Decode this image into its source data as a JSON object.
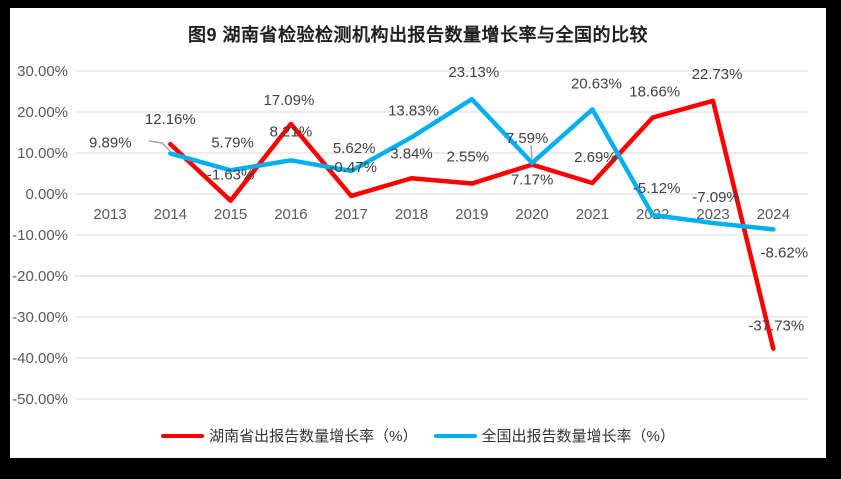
{
  "chart_data": {
    "type": "line",
    "title": "图9 湖南省检验检测机构出报告数量增长率与全国的比较",
    "categories": [
      "2013",
      "2014",
      "2015",
      "2016",
      "2017",
      "2018",
      "2019",
      "2020",
      "2021",
      "2022",
      "2023",
      "2024"
    ],
    "y_ticks": {
      "labels": [
        "30.00%",
        "20.00%",
        "10.00%",
        "0.00%",
        "-10.00%",
        "-20.00%",
        "-30.00%",
        "-40.00%",
        "-50.00%"
      ],
      "values": [
        30,
        20,
        10,
        0,
        -10,
        -20,
        -30,
        -40,
        -50
      ]
    },
    "ylim": [
      -50,
      30
    ],
    "grid": true,
    "legend_position": "bottom",
    "colors": {
      "grid": "#D9D9D9",
      "axis_text": "#595959",
      "data_label_text": "#404040",
      "leader": "#A6A6A6",
      "hunan_red": "#FF0000",
      "national_blue": "#00B0F0"
    },
    "series": [
      {
        "name": "湖南省出报告数量增长率（%）",
        "color": "#FF0000",
        "values": [
          null,
          12.16,
          -1.63,
          17.09,
          -0.47,
          3.84,
          2.55,
          7.17,
          2.69,
          18.66,
          22.73,
          -37.73
        ],
        "labels": [
          "",
          "12.16%",
          "-1.63%",
          "17.09%",
          "-0.47%",
          "3.84%",
          "2.55%",
          "7.17%",
          "2.69%",
          "18.66%",
          "22.73%",
          "-37.73%"
        ],
        "label_offsets": [
          [
            0,
            0
          ],
          [
            0,
            -25
          ],
          [
            0,
            -26
          ],
          [
            -2,
            -24
          ],
          [
            2,
            -29
          ],
          [
            0,
            -25
          ],
          [
            -4,
            -27
          ],
          [
            0,
            15
          ],
          [
            3,
            -26
          ],
          [
            2,
            -26
          ],
          [
            4,
            -27
          ],
          [
            3,
            -23
          ]
        ]
      },
      {
        "name": "全国出报告数量增长率（%）",
        "color": "#00B0F0",
        "values": [
          null,
          9.89,
          5.79,
          8.21,
          5.62,
          13.83,
          23.13,
          7.59,
          20.63,
          -5.12,
          -7.09,
          -8.62
        ],
        "labels": [
          "",
          "9.89%",
          "5.79%",
          "8.21%",
          "5.62%",
          "13.83%",
          "23.13%",
          "7.59%",
          "20.63%",
          "-5.12%",
          "-7.09%",
          "-8.62%"
        ],
        "label_offsets": [
          [
            0,
            0
          ],
          [
            -60,
            -11
          ],
          [
            2,
            -28
          ],
          [
            0,
            -29
          ],
          [
            3,
            -23
          ],
          [
            2,
            -27
          ],
          [
            2,
            -27
          ],
          [
            -5,
            -25
          ],
          [
            4,
            -26
          ],
          [
            4,
            -27
          ],
          [
            3,
            -26
          ],
          [
            11,
            23
          ]
        ]
      }
    ],
    "leader_lines": [
      {
        "points": [
          [
            139,
            133
          ],
          [
            152,
            135
          ],
          [
            160,
            143
          ]
        ]
      },
      {
        "points": [
          [
            521,
            137
          ],
          [
            522,
            151
          ]
        ]
      }
    ]
  }
}
